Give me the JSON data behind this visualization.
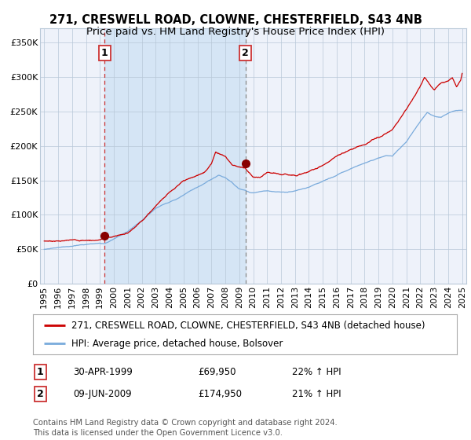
{
  "title": "271, CRESWELL ROAD, CLOWNE, CHESTERFIELD, S43 4NB",
  "subtitle": "Price paid vs. HM Land Registry's House Price Index (HPI)",
  "ylabel_ticks": [
    "£0",
    "£50K",
    "£100K",
    "£150K",
    "£200K",
    "£250K",
    "£300K",
    "£350K"
  ],
  "ytick_vals": [
    0,
    50000,
    100000,
    150000,
    200000,
    250000,
    300000,
    350000
  ],
  "ylim": [
    0,
    370000
  ],
  "xlim_start": 1994.7,
  "xlim_end": 2025.3,
  "xticks": [
    1995,
    1996,
    1997,
    1998,
    1999,
    2000,
    2001,
    2002,
    2003,
    2004,
    2005,
    2006,
    2007,
    2008,
    2009,
    2010,
    2011,
    2012,
    2013,
    2014,
    2015,
    2016,
    2017,
    2018,
    2019,
    2020,
    2021,
    2022,
    2023,
    2024,
    2025
  ],
  "hpi_color": "#7aabdc",
  "price_color": "#cc0000",
  "marker_color": "#880000",
  "vline1_x": 1999.33,
  "vline2_x": 2009.44,
  "sale1_price": 69950,
  "sale1_date": "30-APR-1999",
  "sale1_label": "£69,950",
  "sale1_hpi_pct": "22% ↑ HPI",
  "sale2_price": 174950,
  "sale2_date": "09-JUN-2009",
  "sale2_label": "£174,950",
  "sale2_hpi_pct": "21% ↑ HPI",
  "legend_label1": "271, CRESWELL ROAD, CLOWNE, CHESTERFIELD, S43 4NB (detached house)",
  "legend_label2": "HPI: Average price, detached house, Bolsover",
  "footnote": "Contains HM Land Registry data © Crown copyright and database right 2024.\nThis data is licensed under the Open Government Licence v3.0.",
  "bg_color": "#ffffff",
  "plot_bg_color": "#eef2fa",
  "shaded_region_color": "#d5e5f5",
  "grid_color": "#b8c8d8",
  "title_fontsize": 10.5,
  "subtitle_fontsize": 9.5,
  "tick_fontsize": 8,
  "legend_fontsize": 8.5,
  "footnote_fontsize": 7.2
}
